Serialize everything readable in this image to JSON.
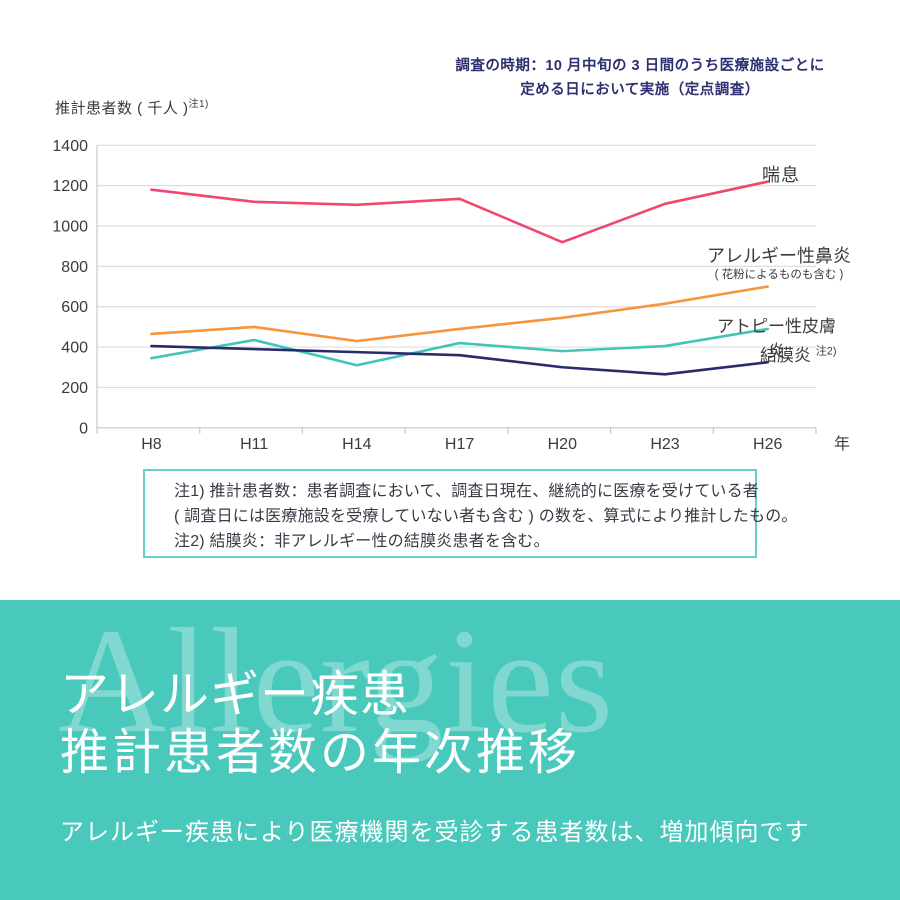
{
  "annotation": {
    "line1": "調査の時期：10 月中旬の 3 日間のうち医療施設ごとに",
    "line2": "定める日において実施（定点調査）"
  },
  "y_axis_label": {
    "text": "推計患者数 ( 千人 )",
    "sup": "注1)"
  },
  "x_axis_unit": "年",
  "chart_data": {
    "type": "line",
    "categories": [
      "H8",
      "H11",
      "H14",
      "H17",
      "H20",
      "H23",
      "H26"
    ],
    "series": [
      {
        "key": "asthma",
        "name": "喘息",
        "color": "#f1476e",
        "values": [
          1180,
          1120,
          1105,
          1135,
          920,
          1110,
          1220
        ]
      },
      {
        "key": "allergic-rhinitis",
        "name": "アレルギー性鼻炎（花粉によるものも含む）",
        "color": "#f6953c",
        "values": [
          465,
          500,
          430,
          490,
          545,
          615,
          700
        ]
      },
      {
        "key": "atopic-dermatitis",
        "name": "アトピー性皮膚炎",
        "color": "#40c5b8",
        "values": [
          345,
          435,
          310,
          420,
          380,
          405,
          490
        ]
      },
      {
        "key": "conjunctivitis",
        "name": "結膜炎",
        "color": "#292b6c",
        "values": [
          405,
          390,
          375,
          360,
          300,
          265,
          325
        ]
      }
    ],
    "ylabel": "推計患者数 ( 千人 )",
    "xlabel": "年",
    "ylim": [
      0,
      1400
    ],
    "ytick_step": 200,
    "grid": true,
    "legend_position": "right-of-line-ends"
  },
  "legend": {
    "asthma": "喘息",
    "rhinitis_line1": "アレルギー性鼻炎",
    "rhinitis_line2": "( 花粉によるものも含む )",
    "atopic": "アトピー性皮膚炎",
    "conjunctivitis": "結膜炎",
    "conjunctivitis_sup": "注2)"
  },
  "notes": {
    "line1": "注1) 推計患者数：患者調査において、調査日現在、継続的に医療を受けている者",
    "line2": "( 調査日には医療施設を受療していない者も含む ) の数を、算式により推計したもの。",
    "line3": "注2) 結膜炎：非アレルギー性の結膜炎患者を含む。"
  },
  "footer": {
    "watermark": "Allergies",
    "title_line1": "アレルギー疾患",
    "title_line2": "推計患者数の年次推移",
    "subtitle": "アレルギー疾患により医療機関を受診する患者数は、増加傾向です"
  },
  "colors": {
    "accent_teal_band": "#49c8bc",
    "annotation_navy": "#2d3070",
    "axis_text": "#3b3b3b",
    "gridline": "#dedede",
    "axis_line": "#c7c7c7",
    "note_border": "#68cfc6",
    "note_text": "#3a3a46",
    "watermark": "rgba(255,255,255,0.30)"
  }
}
